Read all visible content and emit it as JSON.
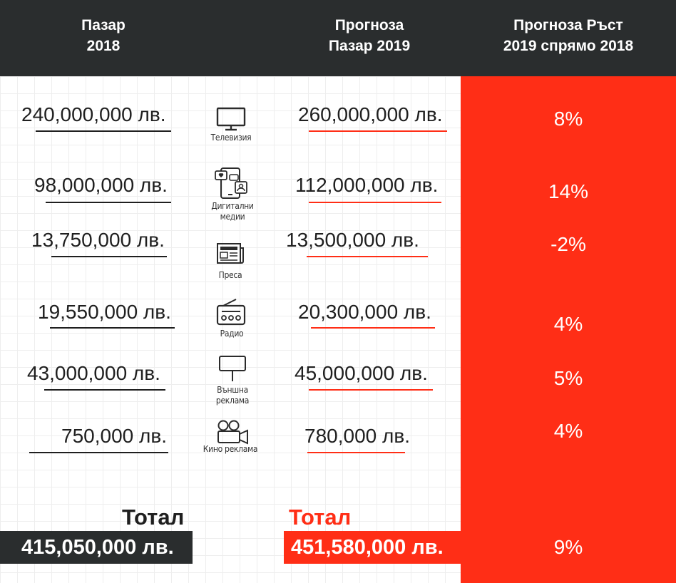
{
  "header": {
    "col1": [
      "Пазар",
      "2018"
    ],
    "col2": [
      "Прогноза",
      "Пазар 2019"
    ],
    "col3": [
      "Прогноза Ръст",
      "2019 спрямо 2018"
    ]
  },
  "chart_data": {
    "type": "table",
    "title": "",
    "columns": [
      "Пазар 2018",
      "Прогноза Пазар 2019",
      "Прогноза Ръст 2019 спрямо 2018"
    ],
    "currency": "лв.",
    "rows": [
      {
        "category": "Телевизия",
        "label_lines": [
          "Телевизия"
        ],
        "market_2018": "240,000,000 лв.",
        "forecast_2019": "260,000,000 лв.",
        "growth": "8%",
        "value_2018": 240000000,
        "value_2019": 260000000,
        "growth_pct": 8
      },
      {
        "category": "Дигитални медии",
        "label_lines": [
          "Дигитални",
          "медии"
        ],
        "market_2018": "98,000,000 лв.",
        "forecast_2019": "112,000,000 лв.",
        "growth": "14%",
        "value_2018": 98000000,
        "value_2019": 112000000,
        "growth_pct": 14
      },
      {
        "category": "Преса",
        "label_lines": [
          "Преса"
        ],
        "market_2018": "13,750,000 лв.",
        "forecast_2019": "13,500,000 лв.",
        "growth": "-2%",
        "value_2018": 13750000,
        "value_2019": 13500000,
        "growth_pct": -2
      },
      {
        "category": "Радио",
        "label_lines": [
          "Радио"
        ],
        "market_2018": "19,550,000 лв.",
        "forecast_2019": "20,300,000 лв.",
        "growth": "4%",
        "value_2018": 19550000,
        "value_2019": 20300000,
        "growth_pct": 4
      },
      {
        "category": "Външна реклама",
        "label_lines": [
          "Външна",
          "реклама"
        ],
        "market_2018": "43,000,000 лв.",
        "forecast_2019": "45,000,000 лв.",
        "growth": "5%",
        "value_2018": 43000000,
        "value_2019": 45000000,
        "growth_pct": 5
      },
      {
        "category": "Кино реклама",
        "label_lines": [
          "Кино реклама"
        ],
        "market_2018": "750,000 лв.",
        "forecast_2019": "780,000 лв.",
        "growth": "4%",
        "value_2018": 750000,
        "value_2019": 780000,
        "growth_pct": 4
      }
    ],
    "totals": {
      "label_2018": "Тотал",
      "label_2019": "Тотал",
      "market_2018": "415,050,000 лв.",
      "forecast_2019": "451,580,000 лв.",
      "growth": "9%",
      "value_2018": 415050000,
      "value_2019": 451580000,
      "growth_pct": 9
    }
  },
  "colors": {
    "header_bg": "#2a2d2e",
    "accent_red": "#ff2e16",
    "text_dark": "#1f1f1f",
    "grid": "#eeeeee"
  },
  "icons": [
    "tv-icon",
    "smartphone-social-icon",
    "newspaper-icon",
    "radio-icon",
    "billboard-icon",
    "movie-camera-icon"
  ]
}
